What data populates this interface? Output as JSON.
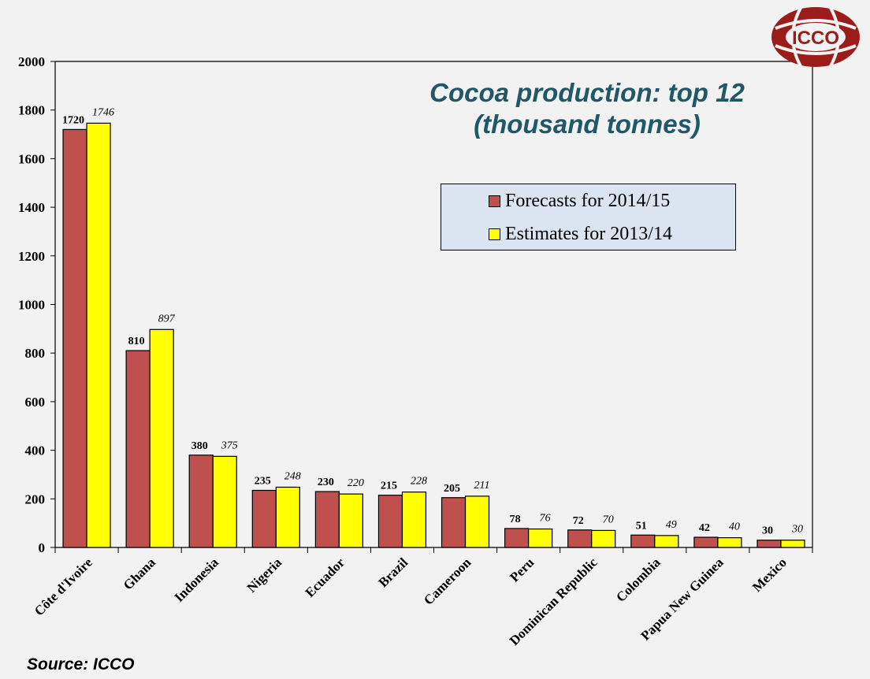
{
  "logo": {
    "text": "ICCO",
    "color": "#9c1c1c"
  },
  "source_note": "Source: ICCO",
  "chart_data": {
    "type": "bar",
    "title": "Cocoa production: top 12 (thousand tonnes)",
    "title_lines": [
      "Cocoa production: top 12",
      "(thousand tonnes)"
    ],
    "xlabel": "",
    "ylabel": "",
    "ylim": [
      0,
      2000
    ],
    "yticks": [
      0,
      200,
      400,
      600,
      800,
      1000,
      1200,
      1400,
      1600,
      1800,
      2000
    ],
    "grid": false,
    "legend_position": "top-right",
    "categories": [
      "Côte d'Ivoire",
      "Ghana",
      "Indonesia",
      "Nigeria",
      "Ecuador",
      "Brazil",
      "Cameroon",
      "Peru",
      "Dominican Republic",
      "Colombia",
      "Papua New Guinea",
      "Mexico"
    ],
    "series": [
      {
        "name": "Forecasts for 2014/15",
        "color": "#c0504d",
        "label_style": "bold",
        "values": [
          1720,
          810,
          380,
          235,
          230,
          215,
          205,
          78,
          72,
          51,
          42,
          30
        ]
      },
      {
        "name": "Estimates for 2013/14",
        "color": "#ffff00",
        "label_style": "italic",
        "values": [
          1746,
          897,
          375,
          248,
          220,
          228,
          211,
          76,
          70,
          49,
          40,
          30
        ]
      }
    ]
  }
}
